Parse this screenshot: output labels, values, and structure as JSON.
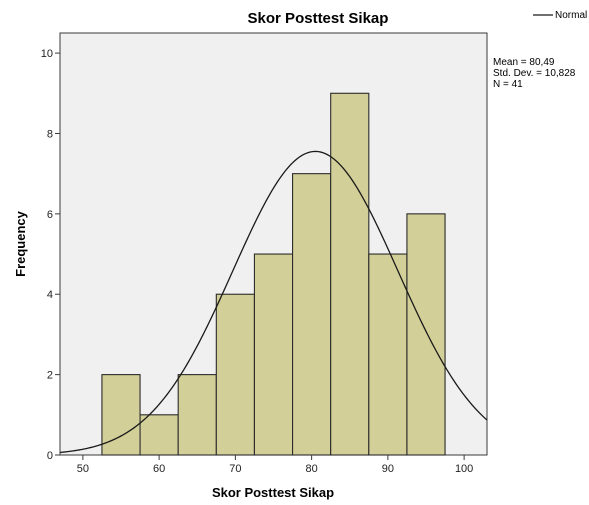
{
  "chart_data": {
    "type": "bar",
    "subtype": "histogram",
    "title": "Skor Posttest Sikap",
    "xlabel": "Skor Posttest Sikap",
    "ylabel": "Frequency",
    "bins": [
      {
        "start": 52.5,
        "end": 57.5,
        "value": 2
      },
      {
        "start": 57.5,
        "end": 62.5,
        "value": 1
      },
      {
        "start": 62.5,
        "end": 67.5,
        "value": 2
      },
      {
        "start": 67.5,
        "end": 72.5,
        "value": 4
      },
      {
        "start": 72.5,
        "end": 77.5,
        "value": 5
      },
      {
        "start": 77.5,
        "end": 82.5,
        "value": 7
      },
      {
        "start": 82.5,
        "end": 87.5,
        "value": 9
      },
      {
        "start": 87.5,
        "end": 92.5,
        "value": 5
      },
      {
        "start": 92.5,
        "end": 97.5,
        "value": 6
      }
    ],
    "xlim": [
      47,
      103
    ],
    "ylim": [
      0,
      10.5
    ],
    "xticks": [
      "50",
      "60",
      "70",
      "80",
      "90",
      "100"
    ],
    "yticks": [
      "0",
      "2",
      "4",
      "6",
      "8",
      "10"
    ],
    "normal_curve": {
      "mean": 80.49,
      "std_dev": 10.828,
      "n": 41,
      "bin_width": 5
    },
    "stats": {
      "mean": "Mean = 80,49",
      "std_dev": "Std. Dev. = 10,828",
      "n": "N = 41"
    },
    "legend": {
      "label": "Normal",
      "position": "top-right"
    },
    "colors": {
      "plot_bg": "#f0f0f0",
      "bar_fill": "#d3cf98",
      "bar_stroke": "#2b2b2b",
      "curve": "#1a1a1a"
    },
    "grid": false
  }
}
